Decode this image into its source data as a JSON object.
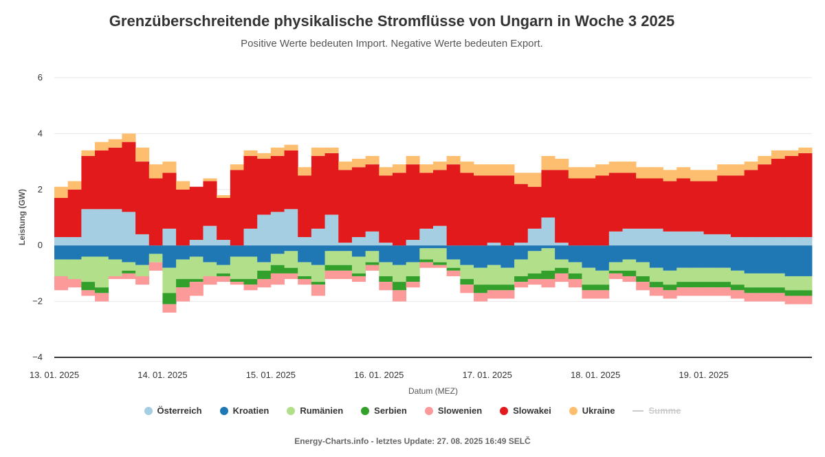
{
  "chart_data": {
    "type": "bar",
    "stacked": true,
    "title": "Grenzüberschreitende physikalische Stromflüsse von Ungarn in Woche 3 2025",
    "subtitle": "Positive Werte bedeuten Import. Negative Werte bedeuten Export.",
    "xlabel": "Datum (MEZ)",
    "ylabel": "Leistung (GW)",
    "ylim": [
      -4,
      6
    ],
    "yticks": [
      "6",
      "4",
      "2",
      "0",
      "−2",
      "−4"
    ],
    "ytick_values": [
      6,
      4,
      2,
      0,
      -2,
      -4
    ],
    "xtick_labels": [
      "13. 01. 2025",
      "14. 01. 2025",
      "15. 01. 2025",
      "16. 01. 2025",
      "17. 01. 2025",
      "18. 01. 2025",
      "19. 01. 2025"
    ],
    "x_start": "13. 01. 2025 00:00",
    "x_step_hours": 3,
    "grid": true,
    "legend_position": "bottom",
    "series": [
      {
        "name": "Österreich",
        "color": "#a6cee3",
        "values": [
          0.3,
          0.3,
          1.3,
          1.3,
          1.3,
          1.2,
          0.4,
          0.0,
          0.6,
          0.0,
          0.2,
          0.7,
          0.2,
          0.0,
          0.6,
          1.1,
          1.2,
          1.3,
          0.3,
          0.6,
          1.1,
          0.1,
          0.3,
          0.5,
          0.1,
          0.0,
          0.2,
          0.6,
          0.7,
          0.0,
          0.0,
          0.0,
          0.1,
          0.0,
          0.1,
          0.6,
          1.0,
          0.1,
          0.0,
          0.0,
          0.0,
          0.5,
          0.6,
          0.6,
          0.6,
          0.5,
          0.5,
          0.5,
          0.4,
          0.4,
          0.3,
          0.3,
          0.3,
          0.3,
          0.3,
          0.3
        ]
      },
      {
        "name": "Kroatien",
        "color": "#1f78b4",
        "values": [
          -0.5,
          -0.5,
          -0.4,
          -0.4,
          -0.5,
          -0.6,
          -0.7,
          -0.3,
          -0.8,
          -0.5,
          -0.4,
          -0.6,
          -0.7,
          -0.4,
          -0.4,
          -0.6,
          -0.3,
          -0.2,
          -0.6,
          -0.7,
          -0.2,
          -0.2,
          -0.4,
          -0.2,
          -0.6,
          -0.7,
          -0.6,
          -0.1,
          -0.1,
          -0.5,
          -0.7,
          -0.8,
          -0.7,
          -0.8,
          -0.5,
          -0.2,
          -0.1,
          -0.5,
          -0.6,
          -0.8,
          -0.9,
          -0.6,
          -0.5,
          -0.6,
          -0.8,
          -0.9,
          -0.8,
          -0.8,
          -0.8,
          -0.8,
          -0.9,
          -1.0,
          -1.0,
          -1.0,
          -1.1,
          -1.1
        ]
      },
      {
        "name": "Rumänien",
        "color": "#b2df8a",
        "values": [
          -0.6,
          -0.7,
          -0.9,
          -1.1,
          -0.6,
          -0.3,
          -0.4,
          -0.3,
          -0.9,
          -0.7,
          -0.8,
          -0.5,
          -0.3,
          -0.8,
          -0.8,
          -0.3,
          -0.4,
          -0.6,
          -0.5,
          -0.6,
          -0.5,
          -0.5,
          -0.6,
          -0.4,
          -0.5,
          -0.6,
          -0.5,
          -0.4,
          -0.5,
          -0.3,
          -0.5,
          -0.6,
          -0.7,
          -0.6,
          -0.6,
          -0.8,
          -0.8,
          -0.3,
          -0.4,
          -0.6,
          -0.5,
          -0.3,
          -0.4,
          -0.5,
          -0.5,
          -0.5,
          -0.5,
          -0.5,
          -0.5,
          -0.5,
          -0.5,
          -0.5,
          -0.5,
          -0.5,
          -0.5,
          -0.5
        ]
      },
      {
        "name": "Serbien",
        "color": "#33a02c",
        "values": [
          0,
          0,
          -0.3,
          -0.2,
          0,
          -0.1,
          0,
          0,
          -0.4,
          -0.3,
          -0.1,
          0,
          -0.1,
          -0.1,
          -0.2,
          -0.3,
          -0.3,
          -0.2,
          -0.1,
          -0.1,
          -0.2,
          -0.2,
          -0.1,
          -0.1,
          -0.2,
          -0.3,
          -0.2,
          -0.1,
          -0.1,
          -0.1,
          -0.2,
          -0.3,
          -0.2,
          -0.2,
          -0.2,
          -0.2,
          -0.3,
          -0.2,
          -0.2,
          -0.2,
          -0.2,
          -0.1,
          -0.2,
          -0.2,
          -0.2,
          -0.2,
          -0.2,
          -0.2,
          -0.2,
          -0.2,
          -0.2,
          -0.2,
          -0.2,
          -0.2,
          -0.2,
          -0.2
        ]
      },
      {
        "name": "Slowenien",
        "color": "#fb9a99",
        "values": [
          -0.5,
          -0.3,
          -0.2,
          -0.3,
          -0.1,
          -0.2,
          -0.3,
          -0.3,
          -0.3,
          -0.5,
          -0.5,
          -0.3,
          -0.2,
          -0.1,
          -0.2,
          -0.3,
          -0.4,
          -0.2,
          -0.2,
          -0.4,
          -0.3,
          -0.3,
          -0.2,
          -0.2,
          -0.3,
          -0.4,
          -0.2,
          -0.2,
          -0.1,
          -0.2,
          -0.3,
          -0.3,
          -0.3,
          -0.3,
          -0.2,
          -0.2,
          -0.3,
          -0.3,
          -0.3,
          -0.3,
          -0.3,
          -0.2,
          -0.2,
          -0.3,
          -0.3,
          -0.3,
          -0.3,
          -0.3,
          -0.3,
          -0.3,
          -0.3,
          -0.3,
          -0.3,
          -0.3,
          -0.3,
          -0.3
        ]
      },
      {
        "name": "Slowakei",
        "color": "#e31a1c",
        "values": [
          1.4,
          1.7,
          1.9,
          2.1,
          2.2,
          2.5,
          2.6,
          2.4,
          2.0,
          2.0,
          1.9,
          1.6,
          1.5,
          2.7,
          2.6,
          2.0,
          2.0,
          2.1,
          2.2,
          2.6,
          2.2,
          2.6,
          2.5,
          2.4,
          2.4,
          2.6,
          2.7,
          2.0,
          2.0,
          2.9,
          2.6,
          2.5,
          2.4,
          2.5,
          2.1,
          1.5,
          1.7,
          2.6,
          2.4,
          2.4,
          2.5,
          2.1,
          2.0,
          1.8,
          1.8,
          1.8,
          1.9,
          1.8,
          1.9,
          2.1,
          2.2,
          2.4,
          2.6,
          2.8,
          2.9,
          3.0
        ]
      },
      {
        "name": "Ukraine",
        "color": "#fdbf6f",
        "values": [
          0.4,
          0.3,
          0.2,
          0.3,
          0.3,
          0.3,
          0.5,
          0.5,
          0.4,
          0.3,
          0.0,
          0.1,
          0.1,
          0.2,
          0.2,
          0.2,
          0.3,
          0.2,
          0.3,
          0.3,
          0.2,
          0.3,
          0.3,
          0.3,
          0.3,
          0.3,
          0.3,
          0.3,
          0.3,
          0.3,
          0.4,
          0.4,
          0.4,
          0.4,
          0.4,
          0.5,
          0.5,
          0.4,
          0.4,
          0.4,
          0.4,
          0.4,
          0.4,
          0.4,
          0.4,
          0.4,
          0.4,
          0.4,
          0.4,
          0.4,
          0.4,
          0.3,
          0.3,
          0.3,
          0.2,
          0.2
        ]
      }
    ]
  },
  "legend": {
    "sum_label": "Summe"
  },
  "footer": "Energy-Charts.info - letztes Update: 27. 08. 2025 16:49 SELČ"
}
